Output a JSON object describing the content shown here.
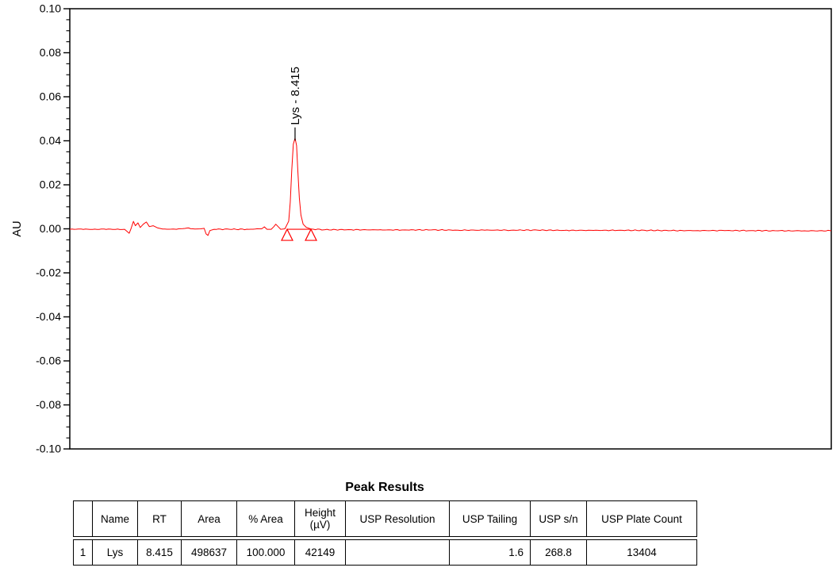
{
  "chart_data": {
    "type": "line",
    "title": "",
    "xlabel": "",
    "ylabel": "AU",
    "ylim": [
      -0.1,
      0.1
    ],
    "y_tick_labels": [
      "0.10",
      "0.08",
      "0.06",
      "0.04",
      "0.02",
      "0.00",
      "-0.02",
      "-0.04",
      "-0.06",
      "-0.08",
      "-0.10"
    ],
    "y_minor_divisions_per_major": 4,
    "grid": "off",
    "legend": "none",
    "axis_color": "#000000",
    "trace_color": "#ff0000",
    "noise_amplitude_au": 0.00022,
    "series": [
      {
        "name": "chromatogram-trace",
        "points_xfrac_au": [
          [
            0.0,
            -0.0002
          ],
          [
            0.015,
            -0.0001
          ],
          [
            0.03,
            -0.0003
          ],
          [
            0.045,
            -0.0001
          ],
          [
            0.06,
            -0.0003
          ],
          [
            0.072,
            -0.0002
          ],
          [
            0.078,
            -0.002
          ],
          [
            0.0805,
            0.0002
          ],
          [
            0.0835,
            0.0034
          ],
          [
            0.086,
            0.0014
          ],
          [
            0.0895,
            0.0027
          ],
          [
            0.0925,
            0.0006
          ],
          [
            0.0965,
            0.0021
          ],
          [
            0.1005,
            0.0031
          ],
          [
            0.1045,
            0.001
          ],
          [
            0.1095,
            0.0014
          ],
          [
            0.1155,
            0.0004
          ],
          [
            0.122,
            -0.0001
          ],
          [
            0.14,
            -0.0002
          ],
          [
            0.156,
            0.0004
          ],
          [
            0.1645,
            -0.0001
          ],
          [
            0.172,
            0.0
          ],
          [
            0.1765,
            0.0002
          ],
          [
            0.179,
            -0.0023
          ],
          [
            0.1815,
            -0.003
          ],
          [
            0.184,
            -0.0008
          ],
          [
            0.1895,
            -0.0002
          ],
          [
            0.21,
            -0.0002
          ],
          [
            0.235,
            -0.0002
          ],
          [
            0.252,
            0.0
          ],
          [
            0.2555,
            0.0009
          ],
          [
            0.259,
            -0.0002
          ],
          [
            0.2645,
            -0.0002
          ],
          [
            0.268,
            0.001
          ],
          [
            0.2705,
            0.0021
          ],
          [
            0.2735,
            0.001
          ],
          [
            0.277,
            -0.0002
          ],
          [
            0.2825,
            0.0
          ],
          [
            0.2875,
            0.0035
          ],
          [
            0.2895,
            0.012
          ],
          [
            0.2915,
            0.0265
          ],
          [
            0.2935,
            0.0385
          ],
          [
            0.2958,
            0.0412
          ],
          [
            0.2978,
            0.0378
          ],
          [
            0.2995,
            0.0262
          ],
          [
            0.3015,
            0.014
          ],
          [
            0.3035,
            0.0062
          ],
          [
            0.3065,
            0.0021
          ],
          [
            0.3105,
            0.0007
          ],
          [
            0.317,
            -0.0001
          ],
          [
            0.335,
            -0.0004
          ],
          [
            0.37,
            -0.0004
          ],
          [
            0.405,
            -0.0005
          ],
          [
            0.44,
            -0.0005
          ],
          [
            0.475,
            -0.0005
          ],
          [
            0.51,
            -0.0006
          ],
          [
            0.545,
            -0.0006
          ],
          [
            0.58,
            -0.0006
          ],
          [
            0.615,
            -0.0006
          ],
          [
            0.65,
            -0.0007
          ],
          [
            0.685,
            -0.0007
          ],
          [
            0.72,
            -0.0007
          ],
          [
            0.755,
            -0.0007
          ],
          [
            0.79,
            -0.0008
          ],
          [
            0.825,
            -0.0008
          ],
          [
            0.86,
            -0.0008
          ],
          [
            0.895,
            -0.0008
          ],
          [
            0.93,
            -0.0009
          ],
          [
            0.965,
            -0.0009
          ],
          [
            1.0,
            -0.0009
          ]
        ]
      }
    ],
    "peak_annotation": {
      "label": "Lys - 8.415",
      "apex_x_frac": 0.2958,
      "apex_au": 0.0412,
      "tick_color": "#000000"
    },
    "integration_markers": {
      "start_x_frac": 0.2854,
      "end_x_frac": 0.3167,
      "baseline_au": -0.0002,
      "marker_shape": "triangle",
      "color": "#ff0000"
    }
  },
  "peak_table": {
    "title": "Peak Results",
    "columns": [
      "",
      "Name",
      "RT",
      "Area",
      "% Area",
      "Height\n(µV)",
      "USP Resolution",
      "USP Tailing",
      "USP s/n",
      "USP Plate Count"
    ],
    "rows": [
      [
        "1",
        "Lys",
        "8.415",
        "498637",
        "100.000",
        "42149",
        "",
        "1.6",
        "268.8",
        "13404"
      ]
    ]
  }
}
